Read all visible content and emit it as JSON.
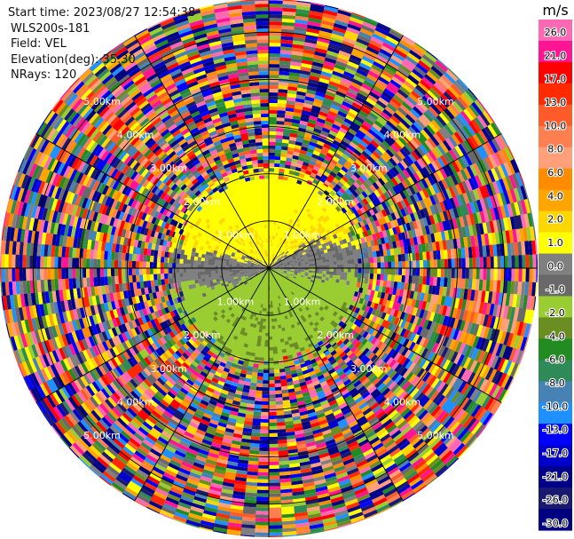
{
  "header": {
    "start_time": "Start time: 2023/08/27 12:54:38",
    "instrument": "WLS200s-181",
    "field": "Field: VEL",
    "elevation": "Elevation(deg): 35.30",
    "nrays": "NRays: 120"
  },
  "chart_data": {
    "type": "heatmap",
    "projection": "polar-ppi",
    "field": "VEL",
    "instrument": "WLS200s-181",
    "start_time": "2023/08/27 12:54:38",
    "elevation_deg": 35.3,
    "nrays": 120,
    "range_rings_km": [
      1.0,
      2.0,
      3.0,
      4.0,
      5.0
    ],
    "range_ring_labels": [
      "1.00km",
      "2.00km",
      "3.00km",
      "4.00km",
      "5.00km"
    ],
    "max_range_km": 5.7,
    "valid_data_radius_km": 2.15,
    "colorbar": {
      "unit": "m/s",
      "tick_labels": [
        "26.0",
        "21.0",
        "17.0",
        "13.0",
        "10.0",
        "8.0",
        "6.0",
        "4.0",
        "2.0",
        "1.0",
        "0.0",
        "-1.0",
        "-2.0",
        "-4.0",
        "-6.0",
        "-8.0",
        "-10.0",
        "-13.0",
        "-17.0",
        "-21.0",
        "-26.0",
        "-30.0"
      ],
      "colors": [
        "#ff69b4",
        "#ff1493",
        "#ff0000",
        "#ff2a00",
        "#ff5a2a",
        "#ff7f50",
        "#ffa07a",
        "#ff8c00",
        "#ffa500",
        "#ffd700",
        "#ffff00",
        "#808080",
        "#696969",
        "#9acd32",
        "#6b8e23",
        "#228b22",
        "#2e8b57",
        "#4682b4",
        "#1e90ff",
        "#0000ff",
        "#0000cd",
        "#00008b",
        "#191970",
        "#000080"
      ]
    },
    "flow_pattern": {
      "inner_north": "yellow (+1 to +4 m/s)",
      "inner_south": "olive green (-1 to -4 m/s)",
      "transition": "gray (about 0 m/s)",
      "outer": "noise across full color scale"
    }
  }
}
